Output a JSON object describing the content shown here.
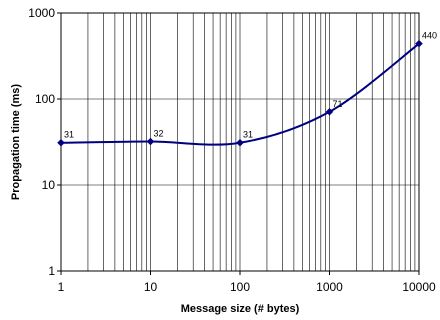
{
  "chart_data": {
    "type": "line",
    "title": "",
    "xlabel": "Message size (# bytes)",
    "ylabel": "Propagation time (ms)",
    "x_scale": "log",
    "y_scale": "log",
    "xlim": [
      1,
      10000
    ],
    "ylim": [
      1,
      1000
    ],
    "x_ticks": [
      1,
      10,
      100,
      1000,
      10000
    ],
    "x_tick_labels": [
      "1",
      "10",
      "100",
      "1000",
      "10000"
    ],
    "y_ticks": [
      1,
      10,
      100,
      1000
    ],
    "y_tick_labels": [
      "1",
      "10",
      "100",
      "1000"
    ],
    "grid": {
      "x_major": true,
      "x_minor": true,
      "y_major": true,
      "y_minor": false
    },
    "legend": "none",
    "series": [
      {
        "x": [
          1,
          10,
          100,
          1000,
          10000
        ],
        "y": [
          31,
          32,
          31,
          71,
          440
        ],
        "labels": [
          "31",
          "32",
          "31",
          "71",
          "440"
        ],
        "color": "#000080",
        "marker": "diamond",
        "smooth": true
      }
    ]
  }
}
